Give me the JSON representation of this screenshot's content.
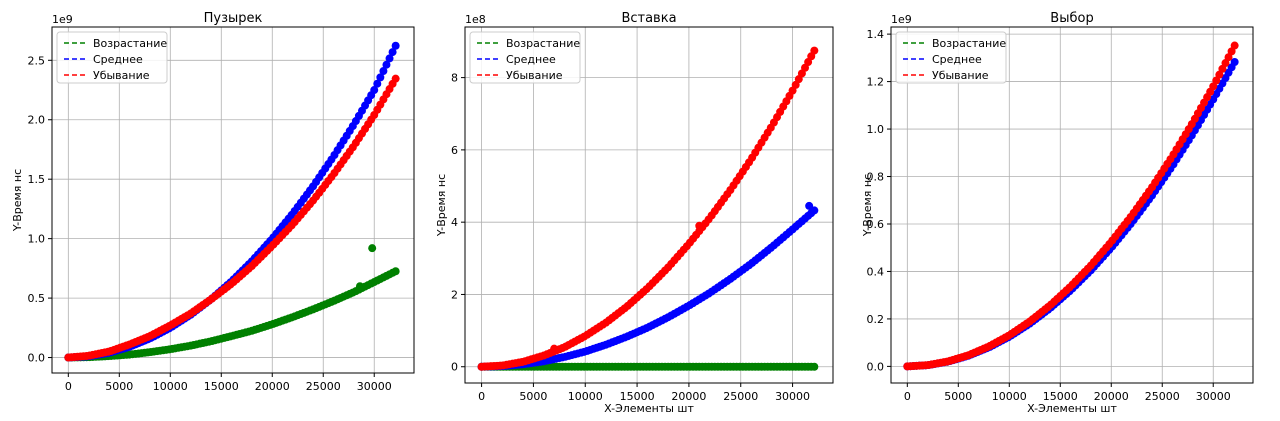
{
  "chart_data": [
    {
      "type": "scatter",
      "title": "Пузырек",
      "xlabel": "",
      "ylabel": "Y-Время нс",
      "y_exponent": "1e9",
      "xlim": [
        -1600,
        33900
      ],
      "ylim": [
        -0.13,
        2.78
      ],
      "xticks": [
        0,
        5000,
        10000,
        15000,
        20000,
        25000,
        30000
      ],
      "yticks": [
        0.0,
        0.5,
        1.0,
        1.5,
        2.0,
        2.5
      ],
      "ytick_labels": [
        "0.0",
        "0.5",
        "1.0",
        "1.5",
        "2.0",
        "2.5"
      ],
      "grid": true,
      "legend_position": "top-left",
      "series": [
        {
          "name": "Возрастание",
          "color": "#008000",
          "x": [
            0,
            2000,
            4000,
            6000,
            8000,
            10000,
            12000,
            14000,
            16000,
            18000,
            20000,
            22000,
            24000,
            26000,
            28000,
            30000,
            32200
          ],
          "y": [
            0.0,
            0.003,
            0.012,
            0.025,
            0.045,
            0.07,
            0.1,
            0.137,
            0.18,
            0.225,
            0.28,
            0.34,
            0.405,
            0.475,
            0.55,
            0.635,
            0.73
          ],
          "outliers": [
            [
              29800,
              0.92
            ],
            [
              28600,
              0.6
            ]
          ]
        },
        {
          "name": "Среднее",
          "color": "#0000ff",
          "x": [
            0,
            2000,
            4000,
            6000,
            8000,
            10000,
            12000,
            14000,
            16000,
            18000,
            20000,
            22000,
            24000,
            26000,
            28000,
            30000,
            32200
          ],
          "y": [
            0.0,
            0.01,
            0.04,
            0.09,
            0.16,
            0.25,
            0.36,
            0.49,
            0.64,
            0.81,
            1.0,
            1.21,
            1.44,
            1.69,
            1.96,
            2.25,
            2.64
          ]
        },
        {
          "name": "Убывание",
          "color": "#ff0000",
          "x": [
            0,
            2000,
            4000,
            6000,
            8000,
            10000,
            12000,
            14000,
            16000,
            18000,
            20000,
            22000,
            24000,
            26000,
            28000,
            30000,
            32200
          ],
          "y": [
            0.0,
            0.015,
            0.05,
            0.11,
            0.18,
            0.27,
            0.37,
            0.49,
            0.62,
            0.77,
            0.94,
            1.12,
            1.32,
            1.54,
            1.78,
            2.04,
            2.36
          ]
        }
      ]
    },
    {
      "type": "scatter",
      "title": "Вставка",
      "xlabel": "X-Элементы шт",
      "ylabel": "Y-Время нс",
      "y_exponent": "1e8",
      "xlim": [
        -1600,
        33900
      ],
      "ylim": [
        -0.45,
        9.4
      ],
      "xticks": [
        0,
        5000,
        10000,
        15000,
        20000,
        25000,
        30000
      ],
      "yticks": [
        0,
        2,
        4,
        6,
        8
      ],
      "ytick_labels": [
        "0",
        "2",
        "4",
        "6",
        "8"
      ],
      "grid": true,
      "legend_position": "top-left",
      "series": [
        {
          "name": "Возрастание",
          "color": "#008000",
          "x": [
            0,
            2000,
            4000,
            6000,
            8000,
            10000,
            12000,
            14000,
            16000,
            18000,
            20000,
            22000,
            24000,
            26000,
            28000,
            30000,
            32200
          ],
          "y": [
            0,
            0,
            0,
            0,
            0,
            0,
            0,
            0,
            0,
            0,
            0,
            0,
            0,
            0,
            0,
            0,
            0
          ]
        },
        {
          "name": "Среднее",
          "color": "#0000ff",
          "x": [
            0,
            2000,
            4000,
            6000,
            8000,
            10000,
            12000,
            14000,
            16000,
            18000,
            20000,
            22000,
            24000,
            26000,
            28000,
            30000,
            32200
          ],
          "y": [
            0.0,
            0.017,
            0.068,
            0.15,
            0.27,
            0.42,
            0.61,
            0.83,
            1.08,
            1.37,
            1.69,
            2.04,
            2.43,
            2.85,
            3.31,
            3.8,
            4.35
          ],
          "outliers": [
            [
              31600,
              4.45
            ]
          ]
        },
        {
          "name": "Убывание",
          "color": "#ff0000",
          "x": [
            0,
            2000,
            4000,
            6000,
            8000,
            10000,
            12000,
            14000,
            16000,
            18000,
            20000,
            22000,
            24000,
            26000,
            28000,
            30000,
            32200
          ],
          "y": [
            0.0,
            0.034,
            0.136,
            0.31,
            0.54,
            0.85,
            1.22,
            1.66,
            2.17,
            2.75,
            3.4,
            4.11,
            4.89,
            5.74,
            6.66,
            7.64,
            8.8
          ],
          "outliers": [
            [
              7000,
              0.5
            ],
            [
              21000,
              3.9
            ]
          ]
        }
      ]
    },
    {
      "type": "scatter",
      "title": "Выбор",
      "xlabel": "X-Элементы шт",
      "ylabel": "Y-Время нс",
      "y_exponent": "1e9",
      "xlim": [
        -1600,
        33900
      ],
      "ylim": [
        -0.07,
        1.43
      ],
      "xticks": [
        0,
        5000,
        10000,
        15000,
        20000,
        25000,
        30000
      ],
      "yticks": [
        0.0,
        0.2,
        0.4,
        0.6,
        0.8,
        1.0,
        1.2,
        1.4
      ],
      "ytick_labels": [
        "0.0",
        "0.2",
        "0.4",
        "0.6",
        "0.8",
        "1.0",
        "1.2",
        "1.4"
      ],
      "grid": true,
      "legend_position": "top-left",
      "series": [
        {
          "name": "Возрастание",
          "color": "#008000",
          "x": [],
          "y": []
        },
        {
          "name": "Среднее",
          "color": "#0000ff",
          "x": [
            0,
            2000,
            4000,
            6000,
            8000,
            10000,
            12000,
            14000,
            16000,
            18000,
            20000,
            22000,
            24000,
            26000,
            28000,
            30000,
            32200
          ],
          "y": [
            0.0,
            0.005,
            0.02,
            0.045,
            0.08,
            0.125,
            0.18,
            0.245,
            0.32,
            0.405,
            0.5,
            0.605,
            0.72,
            0.845,
            0.98,
            1.125,
            1.29
          ]
        },
        {
          "name": "Убывание",
          "color": "#ff0000",
          "x": [
            0,
            2000,
            4000,
            6000,
            8000,
            10000,
            12000,
            14000,
            16000,
            18000,
            20000,
            22000,
            24000,
            26000,
            28000,
            30000,
            32200
          ],
          "y": [
            0.0,
            0.0052,
            0.021,
            0.047,
            0.084,
            0.131,
            0.189,
            0.257,
            0.336,
            0.425,
            0.525,
            0.635,
            0.755,
            0.886,
            1.028,
            1.18,
            1.36
          ]
        }
      ]
    }
  ]
}
